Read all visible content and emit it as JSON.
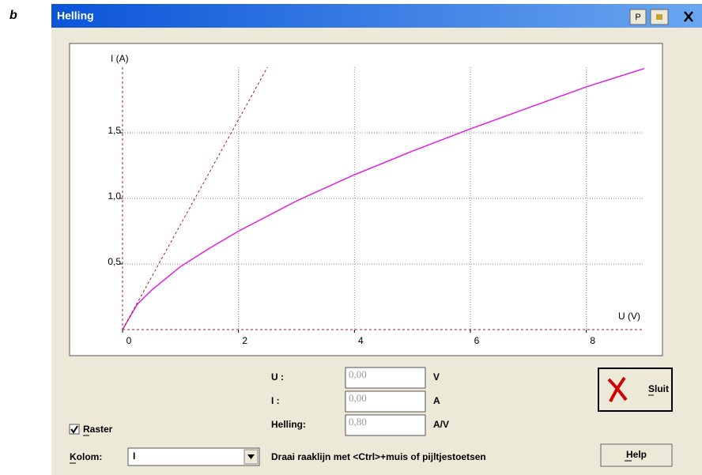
{
  "label": "b",
  "window": {
    "title": "Helling",
    "button": "P"
  },
  "chart_data": {
    "type": "line",
    "xlabel": "U (V)",
    "ylabel": "I (A)",
    "xlim": [
      0,
      9
    ],
    "ylim": [
      0,
      2
    ],
    "xticks": [
      0,
      2,
      4,
      6,
      8
    ],
    "yticks": [
      {
        "value": 0.5,
        "label": "0,5"
      },
      {
        "value": 1.0,
        "label": "1,0"
      },
      {
        "value": 1.5,
        "label": "1,5"
      }
    ],
    "grid": true,
    "series": [
      {
        "color": "#e020e0",
        "dash": false,
        "x": [
          0,
          0.25,
          0.5,
          1,
          1.5,
          2,
          3,
          4,
          5,
          6,
          7,
          8,
          9
        ],
        "values": [
          0,
          0.19,
          0.3,
          0.48,
          0.62,
          0.75,
          0.98,
          1.18,
          1.36,
          1.53,
          1.69,
          1.85,
          1.99
        ]
      },
      {
        "color": "#a02020",
        "dash": true,
        "x": [
          0,
          2.5
        ],
        "values": [
          0,
          2
        ]
      }
    ]
  },
  "form": {
    "fields": [
      {
        "label": "U :",
        "value": "0,00",
        "unit": "V"
      },
      {
        "label": "I :",
        "value": "0,00",
        "unit": "A"
      },
      {
        "label": "Helling:",
        "value": "0,80",
        "unit": "A/V"
      }
    ],
    "close": "Sluit",
    "help": "Help",
    "raster": "Raster",
    "column_label": "Kolom:",
    "column_value": "I",
    "hint": "Draai raaklijn met <Ctrl>+muis of pijltjestoetsen"
  }
}
